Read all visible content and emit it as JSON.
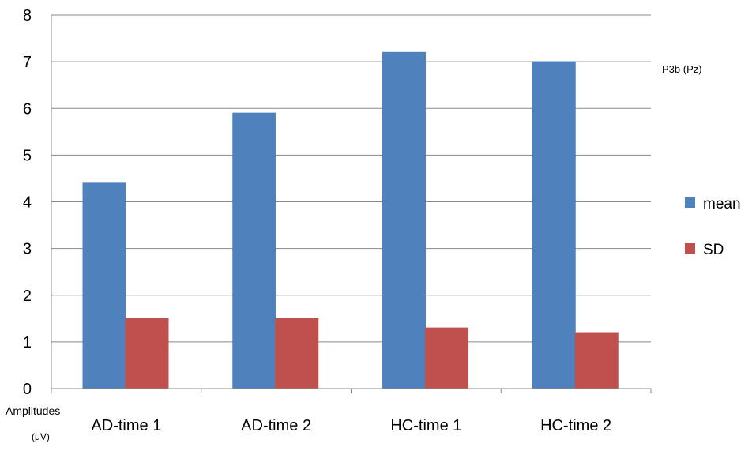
{
  "chart_data": {
    "type": "bar",
    "title": "P3b (Pz)",
    "categories": [
      "AD-time 1",
      "AD-time 2",
      "HC-time 1",
      "HC-time 2"
    ],
    "series": [
      {
        "name": "mean",
        "values": [
          4.4,
          5.9,
          7.2,
          7.0
        ],
        "color": "#4F81BD"
      },
      {
        "name": "SD",
        "values": [
          1.5,
          1.5,
          1.3,
          1.2
        ],
        "color": "#C0504D"
      }
    ],
    "ylabel": "Amplitudes",
    "ylabel_unit": "(μV)",
    "ylim": [
      0,
      8
    ],
    "yticks": [
      "0",
      "1",
      "2",
      "3",
      "4",
      "5",
      "6",
      "7",
      "8"
    ],
    "grid": true,
    "legend_position": "right"
  }
}
